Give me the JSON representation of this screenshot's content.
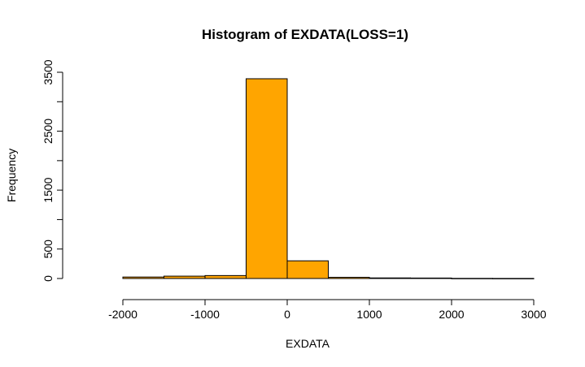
{
  "chart_data": {
    "type": "bar",
    "title": "Histogram of EXDATA(LOSS=1)",
    "xlabel": "EXDATA",
    "ylabel": "Frequency",
    "bin_width": 500,
    "bins": [
      {
        "start": -2000,
        "end": -1500,
        "count": 25
      },
      {
        "start": -1500,
        "end": -1000,
        "count": 40
      },
      {
        "start": -1000,
        "end": -500,
        "count": 50
      },
      {
        "start": -500,
        "end": 0,
        "count": 3390
      },
      {
        "start": 0,
        "end": 500,
        "count": 300
      },
      {
        "start": 500,
        "end": 1000,
        "count": 20
      },
      {
        "start": 1000,
        "end": 1500,
        "count": 10
      },
      {
        "start": 1500,
        "end": 2000,
        "count": 8
      },
      {
        "start": 2000,
        "end": 2500,
        "count": 2
      },
      {
        "start": 2500,
        "end": 3000,
        "count": 1
      }
    ],
    "xlim": [
      -2500,
      3000
    ],
    "ylim": [
      0,
      3500
    ],
    "xticks": [
      -2000,
      -1000,
      0,
      1000,
      2000,
      3000
    ],
    "xtick_labels": [
      "-2000",
      "-1000",
      "0",
      "1000",
      "2000",
      "3000"
    ],
    "yticks": [
      0,
      500,
      1000,
      1500,
      2000,
      2500,
      3000,
      3500
    ],
    "ytick_labels": [
      "0",
      "500",
      "",
      "1500",
      "",
      "2500",
      "",
      "3500"
    ],
    "grid": false,
    "legend": "none",
    "bar_color": "#FFA500",
    "bar_edge_color": "#000000"
  }
}
